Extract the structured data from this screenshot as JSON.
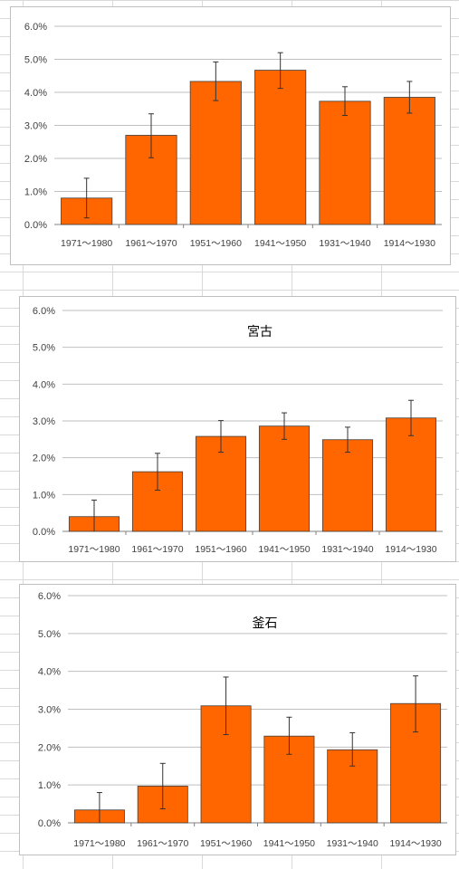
{
  "colors": {
    "bar_fill": "#ff6600",
    "bar_stroke": "#404040",
    "grid": "#bfbfbf",
    "axis": "#808080",
    "text": "#404040",
    "error_bar": "#333333"
  },
  "chart_data": [
    {
      "type": "bar",
      "title": "",
      "categories": [
        "1971～1980",
        "1961～1970",
        "1951～1960",
        "1941～1950",
        "1931～1940",
        "1914～1930"
      ],
      "values": [
        0.8,
        2.7,
        4.33,
        4.67,
        3.73,
        3.85
      ],
      "error_low": [
        0.2,
        2.02,
        3.75,
        4.12,
        3.3,
        3.37
      ],
      "error_high": [
        1.4,
        3.35,
        4.92,
        5.2,
        4.17,
        4.33
      ],
      "yticks": [
        "0.0%",
        "1.0%",
        "2.0%",
        "3.0%",
        "4.0%",
        "5.0%",
        "6.0%"
      ],
      "ylim": [
        0,
        6
      ],
      "grid": true
    },
    {
      "type": "bar",
      "title": "宮古",
      "categories": [
        "1971～1980",
        "1961～1970",
        "1951～1960",
        "1941～1950",
        "1931～1940",
        "1914～1930"
      ],
      "values": [
        0.4,
        1.62,
        2.58,
        2.86,
        2.49,
        3.08
      ],
      "error_low": [
        0.0,
        1.12,
        2.15,
        2.5,
        2.15,
        2.6
      ],
      "error_high": [
        0.85,
        2.12,
        3.01,
        3.22,
        2.83,
        3.56
      ],
      "yticks": [
        "0.0%",
        "1.0%",
        "2.0%",
        "3.0%",
        "4.0%",
        "5.0%",
        "6.0%"
      ],
      "ylim": [
        0,
        6
      ],
      "grid": true
    },
    {
      "type": "bar",
      "title": "釜石",
      "categories": [
        "1971～1980",
        "1961～1970",
        "1951～1960",
        "1941～1950",
        "1931～1940",
        "1914～1930"
      ],
      "values": [
        0.34,
        0.97,
        3.09,
        2.29,
        1.93,
        3.15
      ],
      "error_low": [
        0.0,
        0.37,
        2.33,
        1.81,
        1.5,
        2.4
      ],
      "error_high": [
        0.8,
        1.57,
        3.85,
        2.79,
        2.38,
        3.88
      ],
      "yticks": [
        "0.0%",
        "1.0%",
        "2.0%",
        "3.0%",
        "4.0%",
        "5.0%",
        "6.0%"
      ],
      "ylim": [
        0,
        6
      ],
      "grid": true
    }
  ]
}
